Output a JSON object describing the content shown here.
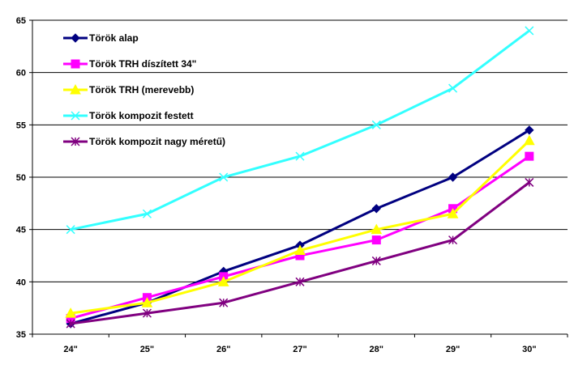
{
  "chart_data": {
    "type": "line",
    "title": "",
    "xlabel": "",
    "ylabel": "",
    "categories": [
      "24\"",
      "25\"",
      "26\"",
      "27\"",
      "28\"",
      "29\"",
      "30\""
    ],
    "ylim": [
      35,
      65
    ],
    "yticks": [
      35,
      40,
      45,
      50,
      55,
      60,
      65
    ],
    "grid": "horizontal",
    "legend_position": "top-left",
    "series": [
      {
        "name": "Török alap",
        "color": "#000080",
        "marker": "diamond",
        "values": [
          36,
          38,
          41,
          43.5,
          47,
          50,
          54.5
        ]
      },
      {
        "name": "Török TRH díszített 34\"",
        "color": "#FF00FF",
        "marker": "square",
        "values": [
          36.5,
          38.5,
          40.5,
          42.5,
          44,
          47,
          52
        ]
      },
      {
        "name": "Török TRH (merevebb)",
        "color": "#FFFF00",
        "marker": "triangle",
        "values": [
          37,
          38,
          40,
          43,
          45,
          46.5,
          53.5
        ]
      },
      {
        "name": "Török kompozit festett",
        "color": "#33FFFF",
        "marker": "x",
        "values": [
          45,
          46.5,
          50,
          52,
          55,
          58.5,
          64
        ]
      },
      {
        "name": "Török kompozit nagy méretű)",
        "color": "#800080",
        "marker": "star",
        "values": [
          36,
          37,
          38,
          40,
          42,
          44,
          49.5
        ]
      }
    ]
  }
}
